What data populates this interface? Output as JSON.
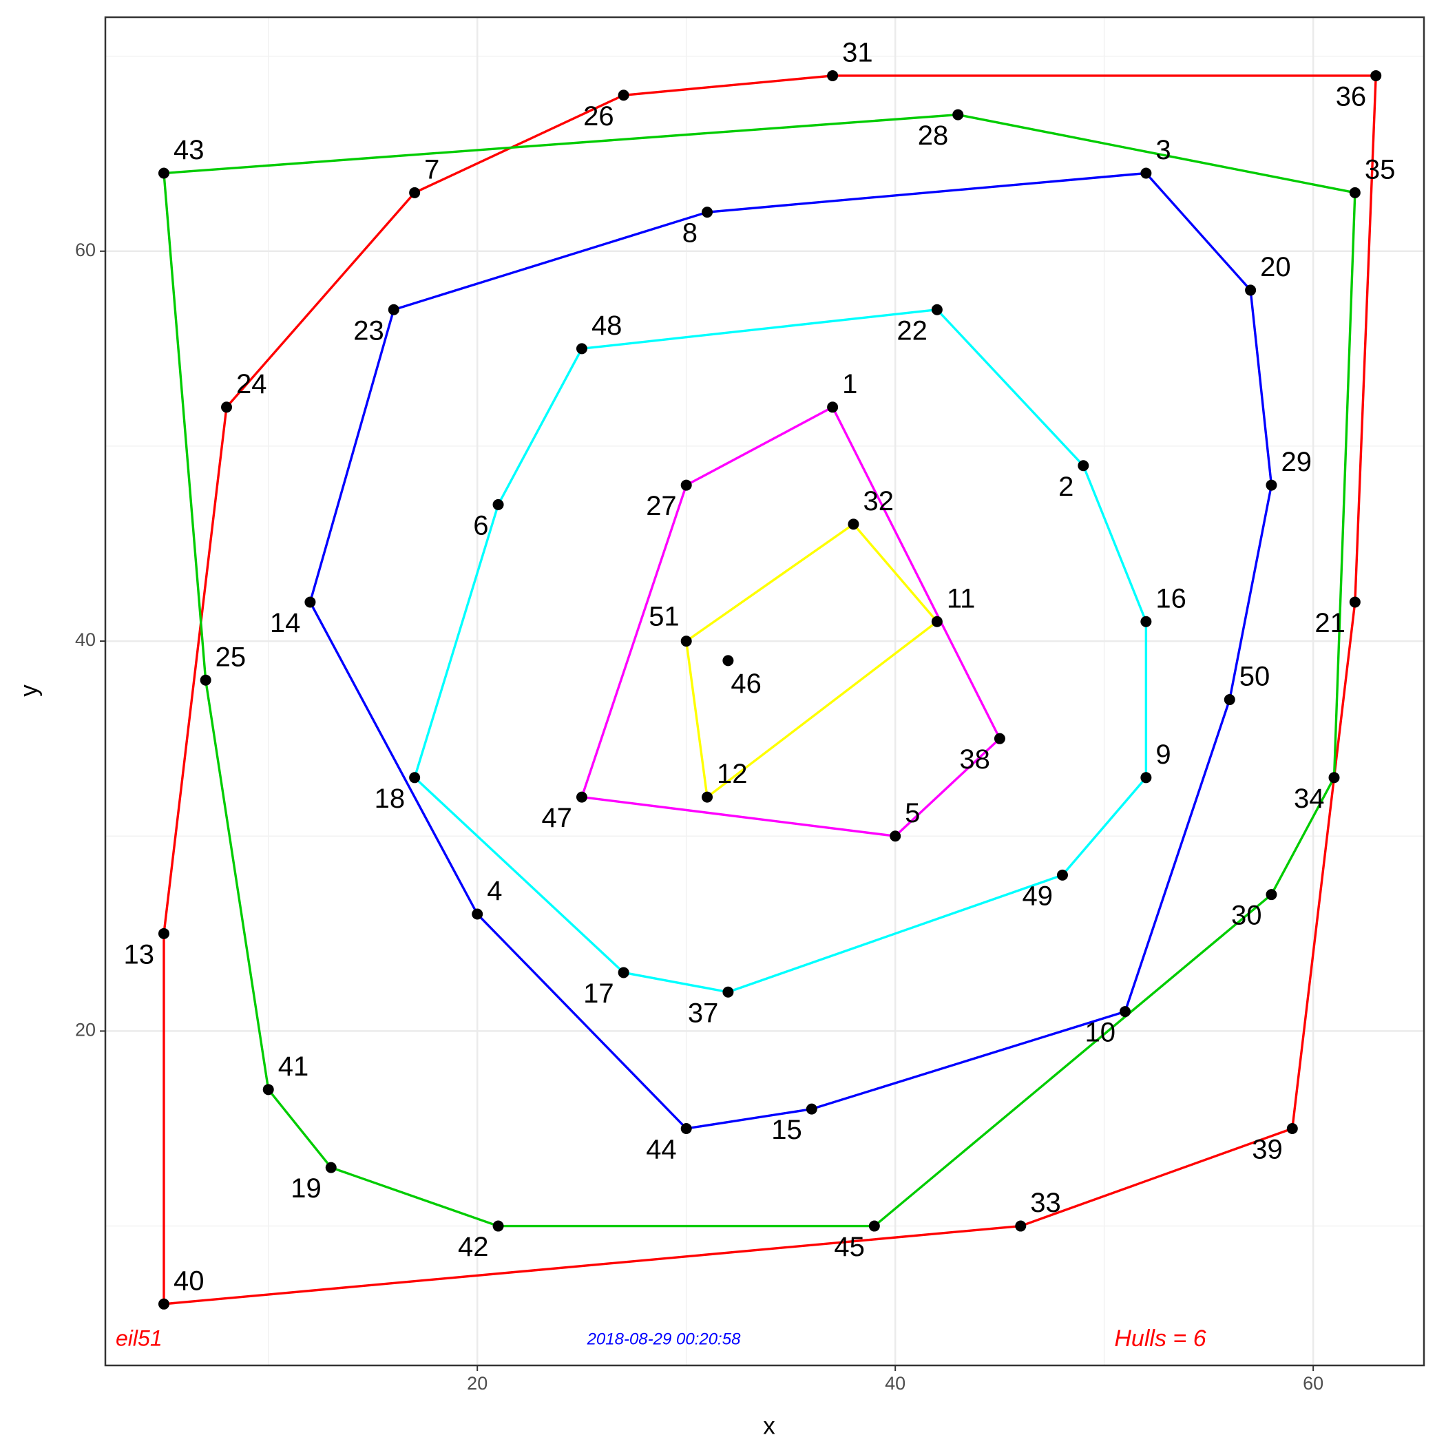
{
  "chart_data": {
    "type": "scatter",
    "x_label": "x",
    "y_label": "y",
    "annotations": [
      {
        "text": "eil51",
        "color": "#ff0000"
      },
      {
        "text": "2018-08-29 00:20:58",
        "color": "#0000ff"
      },
      {
        "text": "Hulls = 6",
        "color": "#ff0000"
      }
    ],
    "labels": [
      1,
      2,
      3,
      4,
      5,
      6,
      7,
      8,
      9,
      10,
      11,
      12,
      13,
      14,
      15,
      16,
      17,
      18,
      19,
      20,
      21,
      22,
      23,
      24,
      25,
      26,
      27,
      28,
      29,
      30,
      31,
      32,
      33,
      34,
      35,
      36,
      37,
      38,
      39,
      40,
      41,
      42,
      43,
      44,
      45,
      46,
      47,
      48,
      49,
      50,
      51
    ],
    "x": [
      37,
      49,
      52,
      20,
      40,
      21,
      17,
      31,
      52,
      51,
      42,
      31,
      5,
      12,
      36,
      52,
      27,
      17,
      13,
      57,
      62,
      42,
      16,
      8,
      7,
      27,
      30,
      43,
      58,
      58,
      37,
      38,
      46,
      61,
      62,
      63,
      32,
      45,
      59,
      5,
      10,
      21,
      5,
      30,
      39,
      32,
      25,
      25,
      48,
      56,
      30
    ],
    "y": [
      52,
      49,
      64,
      26,
      30,
      47,
      63,
      62,
      33,
      21,
      41,
      32,
      25,
      42,
      16,
      41,
      23,
      33,
      13,
      58,
      42,
      57,
      57,
      52,
      38,
      68,
      48,
      67,
      48,
      27,
      69,
      46,
      10,
      33,
      63,
      69,
      22,
      35,
      15,
      6,
      17,
      10,
      64,
      15,
      10,
      39,
      32,
      55,
      28,
      37,
      40
    ],
    "point_color": "#000000",
    "hulls": [
      {
        "color": "#ff0000",
        "members": [
          40,
          13,
          24,
          7,
          26,
          31,
          36,
          21,
          39,
          33,
          40
        ]
      },
      {
        "color": "#00cc00",
        "members": [
          43,
          28,
          35,
          34,
          30,
          45,
          42,
          19,
          41,
          25,
          43
        ]
      },
      {
        "color": "#0000ff",
        "members": [
          44,
          15,
          10,
          50,
          29,
          20,
          3,
          8,
          23,
          14,
          4,
          44
        ]
      },
      {
        "color": "#00ffff",
        "members": [
          48,
          22,
          2,
          16,
          9,
          49,
          37,
          17,
          18,
          6,
          48
        ]
      },
      {
        "color": "#ff00ff",
        "members": [
          1,
          38,
          5,
          47,
          27,
          1
        ]
      },
      {
        "color": "#ffff00",
        "members": [
          32,
          11,
          12,
          51,
          32
        ]
      }
    ],
    "xlim": [
      2.2,
      65.3
    ],
    "ylim": [
      2.85,
      72
    ],
    "xticks": [
      20,
      40,
      60
    ],
    "yticks": [
      20,
      40,
      60
    ],
    "grid": true
  }
}
